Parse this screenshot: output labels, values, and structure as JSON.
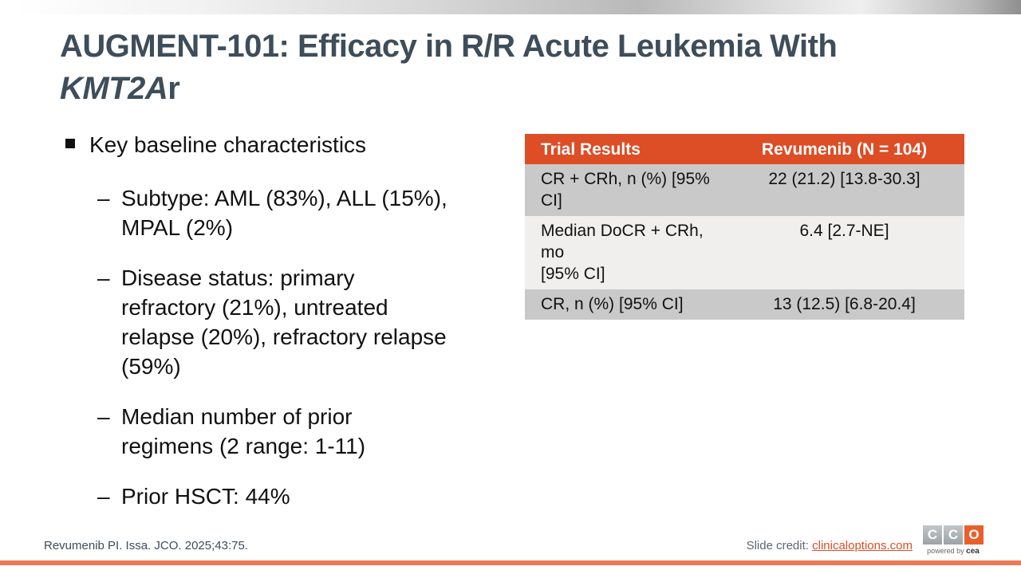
{
  "title": {
    "line1": "AUGMENT-101: Efficacy in R/R Acute Leukemia With",
    "gene": "KMT2A",
    "gene_suffix": "r"
  },
  "bullets": {
    "main": "Key baseline characteristics",
    "sub_marker": "–",
    "sub": [
      "Subtype: AML (83%), ALL (15%),\nMPAL (2%)",
      "Disease status: primary\nrefractory (21%), untreated\nrelapse (20%), refractory relapse\n(59%)",
      "Median number of prior\nregimens (2 range: 1-11)",
      "Prior HSCT: 44%"
    ]
  },
  "table": {
    "header": [
      "Trial Results",
      "Revumenib (N = 104)"
    ],
    "rows": [
      {
        "label": "CR + CRh, n (%) [95% CI]",
        "value": "22 (21.2) [13.8-30.3]"
      },
      {
        "label": "Median DoCR + CRh, mo\n[95% CI]",
        "value": "6.4 [2.7-NE]"
      },
      {
        "label": "CR, n (%) [95% CI]",
        "value": "13 (12.5) [6.8-20.4]"
      }
    ]
  },
  "footer": {
    "citation": "Revumenib PI. Issa. JCO. 2025;43:75.",
    "credit_label": "Slide credit:",
    "credit_link": "clinicaloptions.com"
  },
  "logo": {
    "letters": [
      "C",
      "C",
      "O"
    ],
    "tagline_prefix": "powered by",
    "tagline_brand": "cea"
  },
  "colors": {
    "accent_orange": "#DD4D26",
    "link_orange": "#DD4D26",
    "logo_orange": "#E8602C",
    "bottom_bar_orange": "#ED7A56",
    "title_slate": "#3E4D5A",
    "table_row_gray": "#C9C9C9",
    "table_row_light": "#F0EFEE"
  }
}
